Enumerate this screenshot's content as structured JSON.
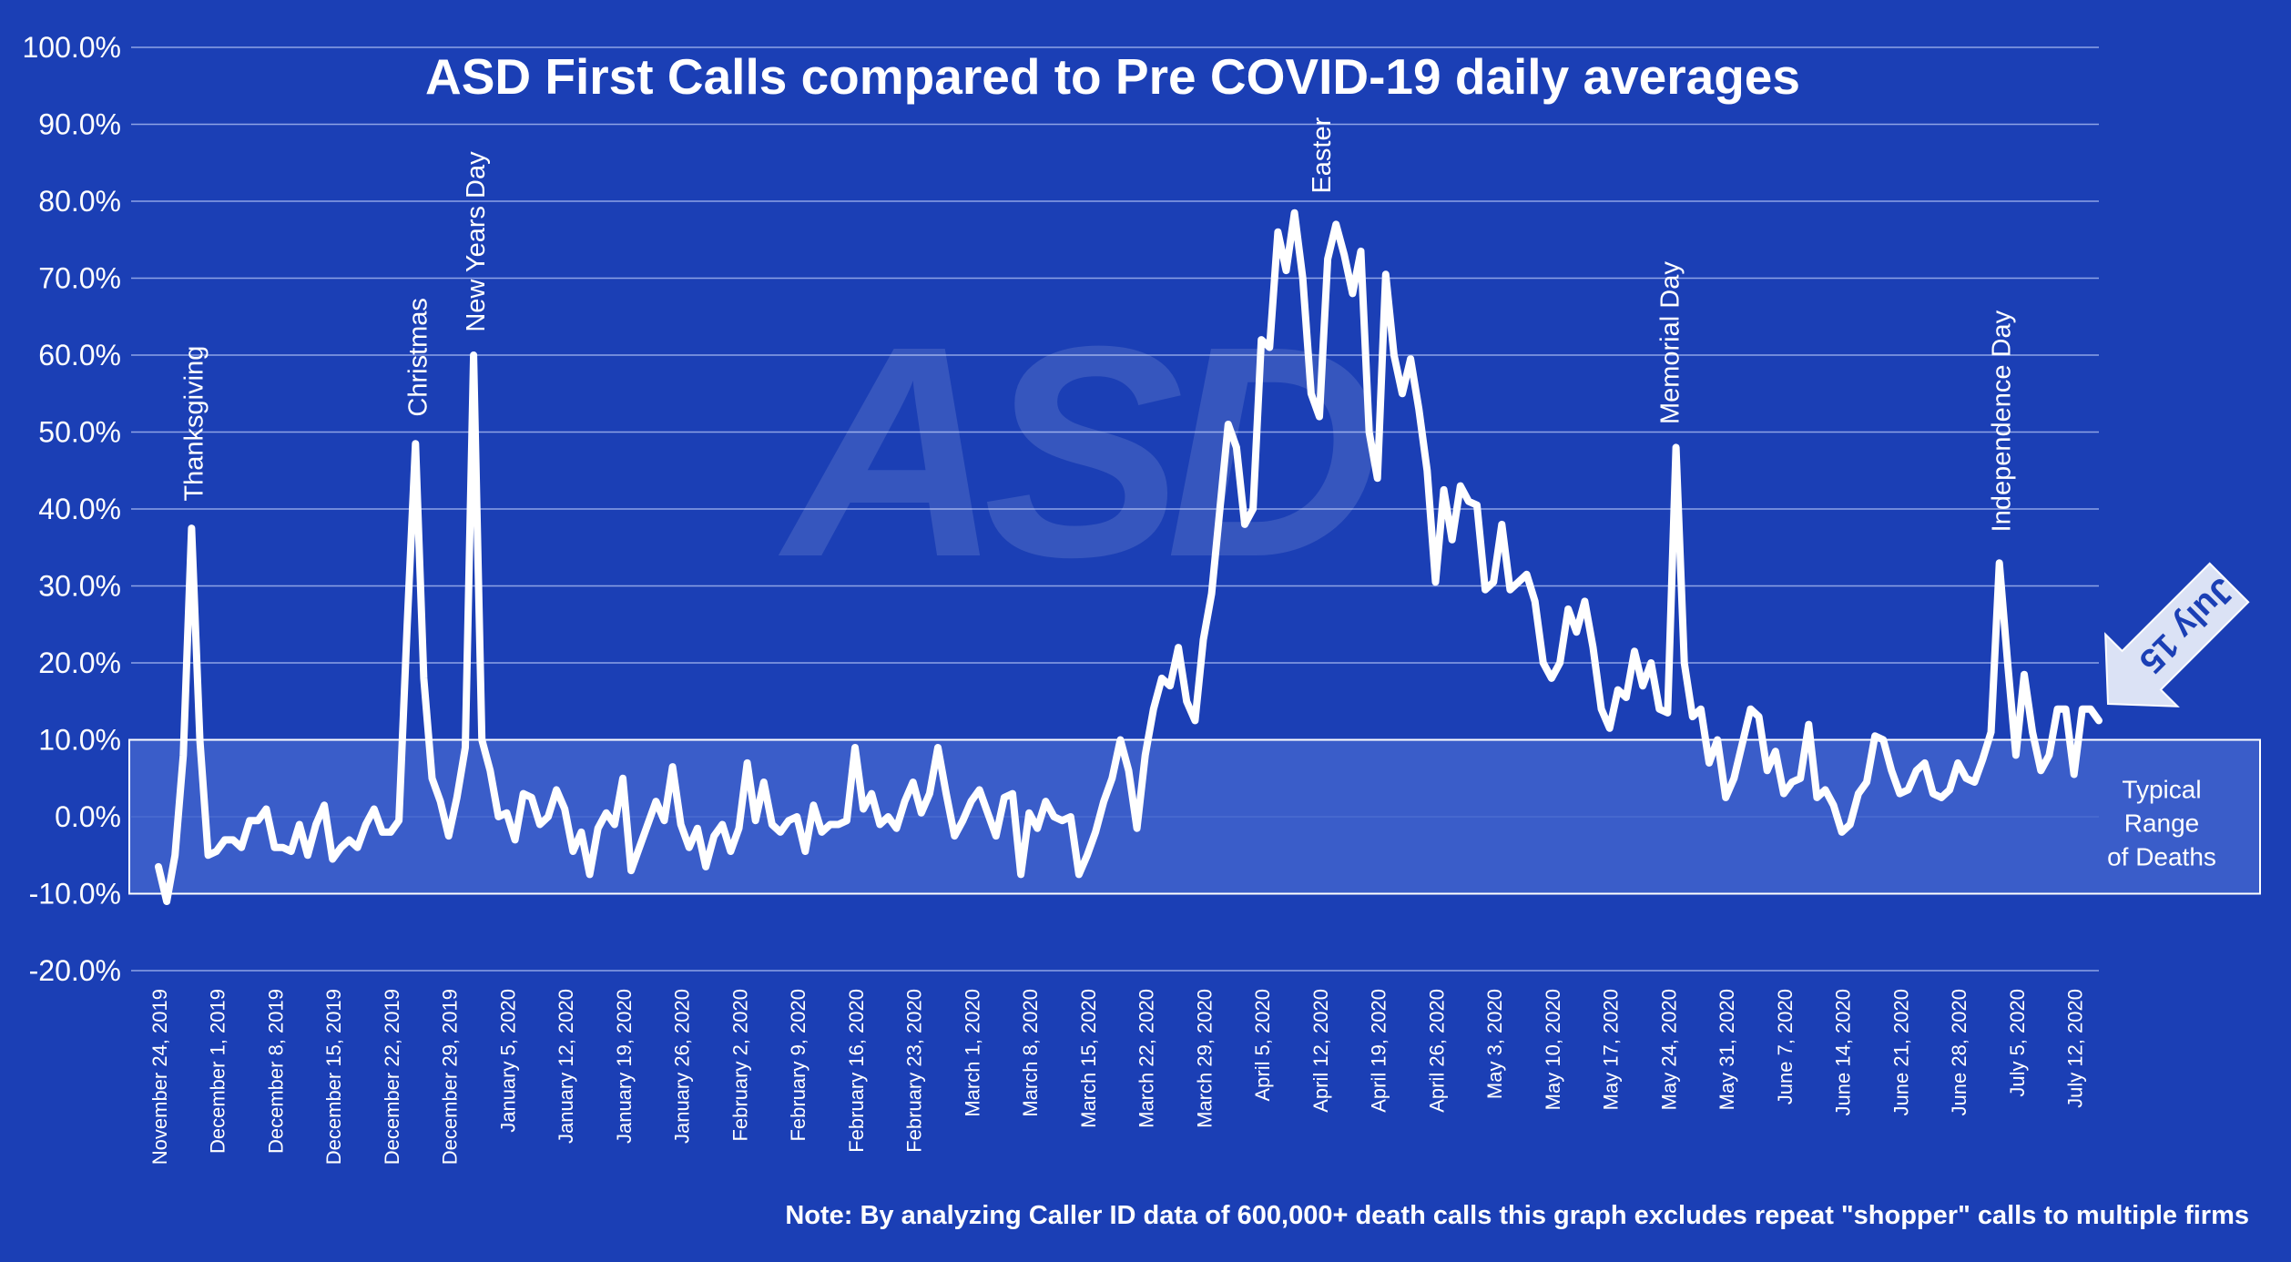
{
  "chart_data": {
    "type": "line",
    "title": "ASD First Calls compared to Pre COVID-19 daily averages",
    "watermark": "ASD",
    "note": "Note: By analyzing Caller ID data of 600,000+ death calls this graph excludes repeat \"shopper\" calls to multiple firms",
    "colors": {
      "background": "#1b3fb5",
      "line": "#ffffff",
      "band": "#3f63cc",
      "grid": "#8ea3e6",
      "arrow": "#dbe2f5",
      "arrow_text": "#1b3fb5"
    },
    "x_unit": "days since November 24, 2019 (ticks weekly)",
    "xlim": [
      0,
      234
    ],
    "ylim": [
      -20,
      100
    ],
    "grid": true,
    "y_ticks": [
      "100.0%",
      "90.0%",
      "80.0%",
      "70.0%",
      "60.0%",
      "50.0%",
      "40.0%",
      "30.0%",
      "20.0%",
      "10.0%",
      "0.0%",
      "-10.0%",
      "-20.0%"
    ],
    "x_tick_labels": [
      "November 24, 2019",
      "December 1, 2019",
      "December 8, 2019",
      "December 15, 2019",
      "December 22, 2019",
      "December 29, 2019",
      "January 5, 2020",
      "January 12, 2020",
      "January 19, 2020",
      "January 26, 2020",
      "February 2, 2020",
      "February 9, 2020",
      "February 16, 2020",
      "February 23, 2020",
      "March 1, 2020",
      "March 8, 2020",
      "March 15, 2020",
      "March 22, 2020",
      "March 29, 2020",
      "April 5, 2020",
      "April 12, 2020",
      "April 19, 2020",
      "April 26, 2020",
      "May 3, 2020",
      "May 10, 2020",
      "May 17, 2020",
      "May 24, 2020",
      "May 31, 2020",
      "June 7, 2020",
      "June 14, 2020",
      "June 21, 2020",
      "June 28, 2020",
      "July 5, 2020",
      "July 12, 2020"
    ],
    "band": {
      "low": -10,
      "high": 10,
      "label_lines": [
        "Typical",
        "Range",
        "of Deaths"
      ]
    },
    "annotations": [
      {
        "text": "Thanksgiving",
        "x": 4,
        "y": 41
      },
      {
        "text": "Christmas",
        "x": 31,
        "y": 52
      },
      {
        "text": "New Years Day",
        "x": 38,
        "y": 63
      },
      {
        "text": "Easter",
        "x": 140,
        "y": 81
      },
      {
        "text": "Memorial Day",
        "x": 182,
        "y": 51
      },
      {
        "text": "Independence Day",
        "x": 222,
        "y": 37
      }
    ],
    "callout": {
      "text": "July 15",
      "x": 234
    },
    "series": [
      {
        "values": [
          [
            0,
            -6.5
          ],
          [
            1,
            -11
          ],
          [
            2,
            -5
          ],
          [
            3,
            8
          ],
          [
            4,
            37.5
          ],
          [
            5,
            10
          ],
          [
            6,
            -5
          ],
          [
            7,
            -4.5
          ],
          [
            8,
            -3
          ],
          [
            9,
            -3
          ],
          [
            10,
            -4
          ],
          [
            11,
            -0.5
          ],
          [
            12,
            -0.5
          ],
          [
            13,
            1
          ],
          [
            14,
            -4
          ],
          [
            15,
            -4
          ],
          [
            16,
            -4.5
          ],
          [
            17,
            -1
          ],
          [
            18,
            -5
          ],
          [
            19,
            -1
          ],
          [
            20,
            1.5
          ],
          [
            21,
            -5.5
          ],
          [
            22,
            -4
          ],
          [
            23,
            -3
          ],
          [
            24,
            -4
          ],
          [
            25,
            -1
          ],
          [
            26,
            1
          ],
          [
            27,
            -2
          ],
          [
            28,
            -2
          ],
          [
            29,
            -0.5
          ],
          [
            30,
            25
          ],
          [
            31,
            48.5
          ],
          [
            32,
            18
          ],
          [
            33,
            5
          ],
          [
            34,
            2
          ],
          [
            35,
            -2.5
          ],
          [
            36,
            2.5
          ],
          [
            37,
            9
          ],
          [
            38,
            60
          ],
          [
            39,
            10
          ],
          [
            40,
            6
          ],
          [
            41,
            0
          ],
          [
            42,
            0.5
          ],
          [
            43,
            -3
          ],
          [
            44,
            3
          ],
          [
            45,
            2.5
          ],
          [
            46,
            -1
          ],
          [
            47,
            0
          ],
          [
            48,
            3.5
          ],
          [
            49,
            1
          ],
          [
            50,
            -4.5
          ],
          [
            51,
            -2
          ],
          [
            52,
            -7.5
          ],
          [
            53,
            -1.5
          ],
          [
            54,
            0.5
          ],
          [
            55,
            -1
          ],
          [
            56,
            5
          ],
          [
            57,
            -7
          ],
          [
            58,
            -4
          ],
          [
            59,
            -1
          ],
          [
            60,
            2
          ],
          [
            61,
            -0.5
          ],
          [
            62,
            6.5
          ],
          [
            63,
            -1
          ],
          [
            64,
            -4
          ],
          [
            65,
            -1.5
          ],
          [
            66,
            -6.5
          ],
          [
            67,
            -2.5
          ],
          [
            68,
            -1
          ],
          [
            69,
            -4.5
          ],
          [
            70,
            -1.5
          ],
          [
            71,
            7
          ],
          [
            72,
            -0.5
          ],
          [
            73,
            4.5
          ],
          [
            74,
            -1
          ],
          [
            75,
            -2
          ],
          [
            76,
            -0.5
          ],
          [
            77,
            0
          ],
          [
            78,
            -4.5
          ],
          [
            79,
            1.5
          ],
          [
            80,
            -2
          ],
          [
            81,
            -1
          ],
          [
            82,
            -1
          ],
          [
            83,
            -0.5
          ],
          [
            84,
            9
          ],
          [
            85,
            1
          ],
          [
            86,
            3
          ],
          [
            87,
            -1
          ],
          [
            88,
            0
          ],
          [
            89,
            -1.5
          ],
          [
            90,
            2
          ],
          [
            91,
            4.5
          ],
          [
            92,
            0.5
          ],
          [
            93,
            3
          ],
          [
            94,
            9
          ],
          [
            95,
            3
          ],
          [
            96,
            -2.5
          ],
          [
            97,
            -0.5
          ],
          [
            98,
            2
          ],
          [
            99,
            3.5
          ],
          [
            100,
            0.5
          ],
          [
            101,
            -2.5
          ],
          [
            102,
            2.5
          ],
          [
            103,
            3
          ],
          [
            104,
            -7.5
          ],
          [
            105,
            0.5
          ],
          [
            106,
            -1.5
          ],
          [
            107,
            2
          ],
          [
            108,
            0
          ],
          [
            109,
            -0.5
          ],
          [
            110,
            0
          ],
          [
            111,
            -7.5
          ],
          [
            112,
            -5
          ],
          [
            113,
            -2
          ],
          [
            114,
            2
          ],
          [
            115,
            5
          ],
          [
            116,
            10
          ],
          [
            117,
            6
          ],
          [
            118,
            -1.5
          ],
          [
            119,
            8
          ],
          [
            120,
            14
          ],
          [
            121,
            18
          ],
          [
            122,
            17
          ],
          [
            123,
            22
          ],
          [
            124,
            15
          ],
          [
            125,
            12.5
          ],
          [
            126,
            23
          ],
          [
            127,
            29
          ],
          [
            128,
            40
          ],
          [
            129,
            51
          ],
          [
            130,
            48
          ],
          [
            131,
            38
          ],
          [
            132,
            40
          ],
          [
            133,
            62
          ],
          [
            134,
            61
          ],
          [
            135,
            76
          ],
          [
            136,
            71
          ],
          [
            137,
            78.5
          ],
          [
            138,
            70
          ],
          [
            139,
            55
          ],
          [
            140,
            52
          ],
          [
            141,
            72.5
          ],
          [
            142,
            77
          ],
          [
            143,
            73
          ],
          [
            144,
            68
          ],
          [
            145,
            73.5
          ],
          [
            146,
            50
          ],
          [
            147,
            44
          ],
          [
            148,
            70.5
          ],
          [
            149,
            60
          ],
          [
            150,
            55
          ],
          [
            151,
            59.5
          ],
          [
            152,
            53
          ],
          [
            153,
            45
          ],
          [
            154,
            30.5
          ],
          [
            155,
            42.5
          ],
          [
            156,
            36
          ],
          [
            157,
            43
          ],
          [
            158,
            41
          ],
          [
            159,
            40.5
          ],
          [
            160,
            29.5
          ],
          [
            161,
            30.5
          ],
          [
            162,
            38
          ],
          [
            163,
            29.5
          ],
          [
            164,
            30.5
          ],
          [
            165,
            31.5
          ],
          [
            166,
            28
          ],
          [
            167,
            20
          ],
          [
            168,
            18
          ],
          [
            169,
            20
          ],
          [
            170,
            27
          ],
          [
            171,
            24
          ],
          [
            172,
            28
          ],
          [
            173,
            22
          ],
          [
            174,
            14
          ],
          [
            175,
            11.5
          ],
          [
            176,
            16.5
          ],
          [
            177,
            15.5
          ],
          [
            178,
            21.5
          ],
          [
            179,
            17
          ],
          [
            180,
            20
          ],
          [
            181,
            14
          ],
          [
            182,
            13.5
          ],
          [
            183,
            48
          ],
          [
            184,
            20
          ],
          [
            185,
            13
          ],
          [
            186,
            14
          ],
          [
            187,
            7
          ],
          [
            188,
            10
          ],
          [
            189,
            2.5
          ],
          [
            190,
            5
          ],
          [
            191,
            9.5
          ],
          [
            192,
            14
          ],
          [
            193,
            13
          ],
          [
            194,
            6
          ],
          [
            195,
            8.5
          ],
          [
            196,
            3
          ],
          [
            197,
            4.5
          ],
          [
            198,
            5
          ],
          [
            199,
            12
          ],
          [
            200,
            2.5
          ],
          [
            201,
            3.5
          ],
          [
            202,
            1.5
          ],
          [
            203,
            -2
          ],
          [
            204,
            -1
          ],
          [
            205,
            3
          ],
          [
            206,
            4.5
          ],
          [
            207,
            10.5
          ],
          [
            208,
            10
          ],
          [
            209,
            6
          ],
          [
            210,
            3
          ],
          [
            211,
            3.5
          ],
          [
            212,
            6
          ],
          [
            213,
            7
          ],
          [
            214,
            3
          ],
          [
            215,
            2.5
          ],
          [
            216,
            3.5
          ],
          [
            217,
            7
          ],
          [
            218,
            5
          ],
          [
            219,
            4.5
          ],
          [
            220,
            7.5
          ],
          [
            221,
            11
          ],
          [
            222,
            33
          ],
          [
            223,
            20
          ],
          [
            224,
            8
          ],
          [
            225,
            18.5
          ],
          [
            226,
            11
          ],
          [
            227,
            6
          ],
          [
            228,
            8
          ],
          [
            229,
            14
          ],
          [
            230,
            14
          ],
          [
            231,
            5.5
          ],
          [
            232,
            14
          ],
          [
            233,
            14
          ],
          [
            234,
            12.5
          ]
        ]
      }
    ]
  }
}
